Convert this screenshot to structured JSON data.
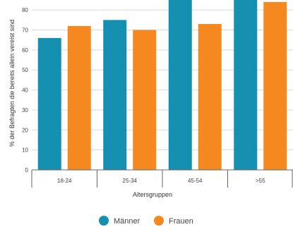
{
  "chart_data": {
    "type": "bar",
    "categories": [
      "18-24",
      "25-34",
      "45-54",
      ">55"
    ],
    "series": [
      {
        "name": "Männer",
        "values": [
          66,
          75,
          85,
          85
        ]
      },
      {
        "name": "Frauen",
        "values": [
          72,
          70,
          73,
          84
        ]
      }
    ],
    "xlabel": "Altersgruppen",
    "ylabel": "% der Befragten die bereits allein vereist sind",
    "yticks": [
      0,
      10,
      20,
      30,
      40,
      50,
      60,
      70,
      80
    ],
    "ylim": [
      0,
      85
    ],
    "grid": "horizontal",
    "legend": "bottom-center",
    "colors": {
      "Männer": "#1590b0",
      "Frauen": "#f5891f",
      "grid": "#d8d8d8",
      "axis": "#666666"
    }
  }
}
